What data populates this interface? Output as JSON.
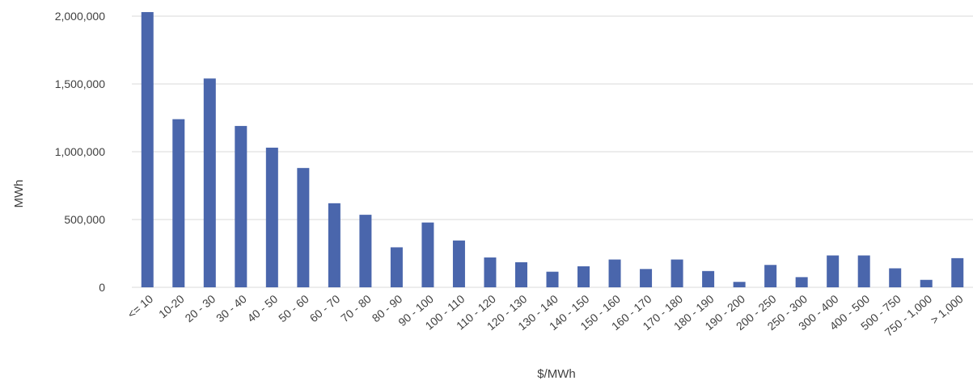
{
  "chart_data": {
    "type": "bar",
    "title": "",
    "xlabel": "$/MWh",
    "ylabel": "MWh",
    "ylim": [
      0,
      2000000
    ],
    "yticks": [
      0,
      500000,
      1000000,
      1500000,
      2000000
    ],
    "ytick_labels": [
      "0",
      "500,000",
      "1,000,000",
      "1,500,000",
      "2,000,000"
    ],
    "grid": true,
    "legend": "none",
    "bar_color": "#4a66ac",
    "categories": [
      "<= 10",
      "10-20",
      "20 - 30",
      "30 - 40",
      "40 - 50",
      "50 - 60",
      "60 - 70",
      "70 - 80",
      "80 - 90",
      "90 - 100",
      "100 - 110",
      "110 - 120",
      "120 - 130",
      "130 - 140",
      "140 - 150",
      "150 - 160",
      "160 - 170",
      "170 - 180",
      "180 - 190",
      "190 - 200",
      "200 - 250",
      "250 - 300",
      "300 - 400",
      "400 - 500",
      "500 - 750",
      "750 - 1,000",
      "> 1,000"
    ],
    "values": [
      2030000,
      1240000,
      1540000,
      1190000,
      1030000,
      880000,
      620000,
      535000,
      295000,
      478000,
      345000,
      220000,
      185000,
      115000,
      155000,
      205000,
      135000,
      205000,
      120000,
      40000,
      165000,
      75000,
      235000,
      235000,
      140000,
      55000,
      215000
    ]
  }
}
